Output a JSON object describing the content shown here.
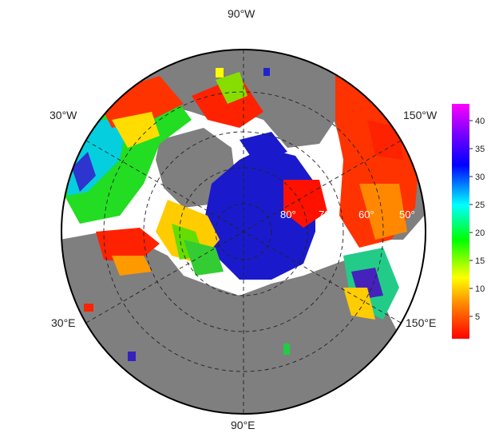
{
  "map": {
    "projection": "polar-stereographic-north",
    "land_color": "#7f7f7f",
    "ocean_color": "#ffffff",
    "gridline_color": "#222222",
    "longitude_labels": {
      "top": "90°W",
      "upper_left": "30°W",
      "upper_right": "150°W",
      "lower_left": "30°E",
      "lower_right": "150°E",
      "bottom": "90°E"
    },
    "latitude_labels": [
      "80°",
      "70°",
      "60°",
      "50°"
    ]
  },
  "colorbar": {
    "ticks": [
      5,
      10,
      15,
      20,
      25,
      30,
      35,
      40
    ],
    "range": [
      1,
      43
    ],
    "colors": [
      "#ff0000",
      "#ff7f00",
      "#ffff00",
      "#00ff00",
      "#00ffff",
      "#0000ff",
      "#8000ff",
      "#ff00ff"
    ]
  }
}
